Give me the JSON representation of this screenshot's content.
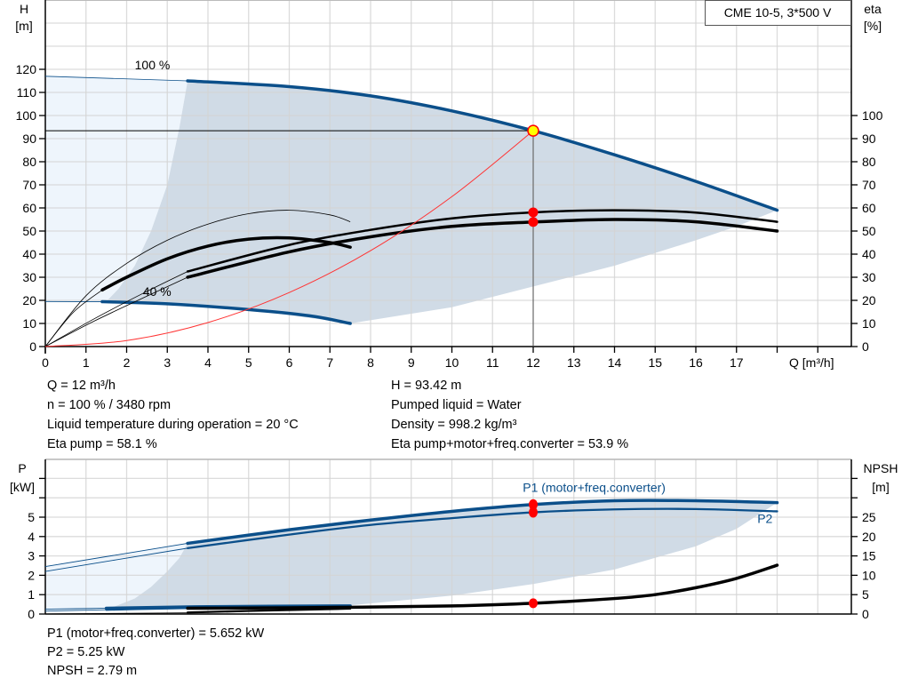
{
  "legend_box": "CME 10-5, 3*500 V",
  "colors": {
    "curve_blue": "#0b4f8a",
    "region_dark": "#d0dbe6",
    "region_light": "#eef5fc",
    "grid": "#d4d4d4",
    "system_curve": "#ff3333",
    "duty_point_fill": "#ffff00",
    "duty_point_stroke": "#ff0000",
    "marker": "#ff0000"
  },
  "info_top": {
    "left": [
      "Q = 12 m³/h",
      "n = 100 % / 3480 rpm",
      "Liquid temperature during operation = 20 °C",
      "Eta pump = 58.1 %"
    ],
    "right": [
      "H = 93.42 m",
      "Pumped liquid = Water",
      "Density = 998.2 kg/m³",
      "Eta pump+motor+freq.converter = 53.9 %"
    ]
  },
  "info_bottom": [
    "P1 (motor+freq.converter) = 5.652 kW",
    "P2 = 5.25 kW",
    "NPSH = 2.79 m"
  ],
  "chart_data": [
    {
      "type": "line",
      "xlabel": "Q [m³/h]",
      "ylabel_left": [
        "H",
        "[m]"
      ],
      "ylabel_right": [
        "eta",
        "[%]"
      ],
      "xlim": [
        0,
        19.8
      ],
      "ylim": [
        0,
        150
      ],
      "x_ticks": [
        0,
        1,
        2,
        3,
        4,
        5,
        6,
        7,
        8,
        9,
        10,
        11,
        12,
        13,
        14,
        15,
        16,
        17
      ],
      "x_ticks_unlabeled": [
        18,
        19
      ],
      "y_ticks_left": [
        0,
        10,
        20,
        30,
        40,
        50,
        60,
        70,
        80,
        90,
        100,
        110,
        120
      ],
      "y_ticks_right": [
        0,
        10,
        20,
        30,
        40,
        50,
        60,
        70,
        80,
        90,
        100
      ],
      "grid": true,
      "annotations": [
        {
          "text": "100 %",
          "q": 2.2,
          "h": 120
        },
        {
          "text": "40 %",
          "q": 2.4,
          "h": 22
        }
      ],
      "duty_point": {
        "q": 12,
        "h": 93.42,
        "eta_pump": 58.1,
        "eta_total": 53.9
      },
      "regions": {
        "light": [
          [
            0,
            19.5
          ],
          [
            0,
            117
          ],
          [
            3.5,
            115
          ],
          [
            3.3,
            95
          ],
          [
            3.0,
            70
          ],
          [
            2.6,
            50
          ],
          [
            2.2,
            35
          ],
          [
            1.8,
            25
          ],
          [
            1.5,
            19.5
          ]
        ],
        "dark": [
          [
            1.5,
            19.5
          ],
          [
            1.8,
            25
          ],
          [
            2.2,
            35
          ],
          [
            2.6,
            50
          ],
          [
            3.0,
            70
          ],
          [
            3.3,
            95
          ],
          [
            3.5,
            115
          ],
          [
            6,
            112.5
          ],
          [
            8,
            108.5
          ],
          [
            10,
            102
          ],
          [
            12,
            93.4
          ],
          [
            14,
            83
          ],
          [
            16,
            71.5
          ],
          [
            18,
            59
          ],
          [
            17,
            52
          ],
          [
            16,
            46
          ],
          [
            14,
            35
          ],
          [
            12,
            26
          ],
          [
            10,
            17
          ],
          [
            7.5,
            10
          ],
          [
            5,
            16
          ],
          [
            3,
            18.5
          ],
          [
            1.5,
            19.5
          ]
        ]
      },
      "series": [
        {
          "kind": "head",
          "thin": [
            [
              0,
              117
            ],
            [
              3.5,
              115
            ]
          ],
          "points": [
            [
              3.5,
              115
            ],
            [
              6,
              112.5
            ],
            [
              8,
              108.5
            ],
            [
              10,
              102
            ],
            [
              12,
              93.42
            ],
            [
              14,
              83
            ],
            [
              16,
              71.5
            ],
            [
              18,
              59
            ]
          ]
        },
        {
          "kind": "head",
          "thin": [
            [
              0,
              19.5
            ],
            [
              1.4,
              19.4
            ]
          ],
          "points": [
            [
              1.4,
              19.4
            ],
            [
              3,
              18.5
            ],
            [
              5,
              16
            ],
            [
              6.5,
              13.3
            ],
            [
              7.5,
              10
            ]
          ]
        },
        {
          "kind": "eta",
          "thin": [
            [
              0,
              0
            ],
            [
              1.2,
              12
            ],
            [
              2.4,
              23
            ],
            [
              3.5,
              32.5
            ]
          ],
          "points": [
            [
              3.5,
              32.5
            ],
            [
              6,
              44
            ],
            [
              8,
              50.5
            ],
            [
              10,
              55.5
            ],
            [
              12,
              58.1
            ],
            [
              14,
              59
            ],
            [
              16,
              58
            ],
            [
              18,
              54
            ]
          ]
        },
        {
          "kind": "eta",
          "heavy": true,
          "thin": [
            [
              0,
              0
            ],
            [
              1.2,
              11
            ],
            [
              2.4,
              21
            ],
            [
              3.5,
              30
            ]
          ],
          "points": [
            [
              3.5,
              30
            ],
            [
              6,
              41
            ],
            [
              8,
              47.5
            ],
            [
              10,
              52
            ],
            [
              12,
              53.9
            ],
            [
              14,
              55
            ],
            [
              16,
              54
            ],
            [
              18,
              50
            ]
          ]
        },
        {
          "kind": "eta",
          "thin": [
            [
              0,
              0
            ],
            [
              1,
              22
            ],
            [
              2,
              36
            ],
            [
              3,
              46
            ],
            [
              4,
              53
            ],
            [
              5,
              57.5
            ],
            [
              6,
              59
            ],
            [
              7,
              57
            ],
            [
              7.5,
              54
            ]
          ],
          "points": []
        },
        {
          "kind": "eta",
          "heavy": true,
          "thin": [
            [
              0,
              0
            ],
            [
              0.7,
              15
            ],
            [
              1.4,
              24.5
            ]
          ],
          "points": [
            [
              1.4,
              24.5
            ],
            [
              2,
              30
            ],
            [
              3,
              38
            ],
            [
              4,
              43.5
            ],
            [
              5,
              46.5
            ],
            [
              6,
              47
            ],
            [
              7,
              45
            ],
            [
              7.5,
              43
            ]
          ]
        },
        {
          "kind": "system",
          "points": [
            [
              0,
              0
            ],
            [
              2,
              2.6
            ],
            [
              4,
              10.4
            ],
            [
              6,
              23.4
            ],
            [
              8,
              41.5
            ],
            [
              10,
              64.9
            ],
            [
              12,
              93.42
            ]
          ]
        }
      ]
    },
    {
      "type": "line",
      "ylabel_left": [
        "P",
        "[kW]"
      ],
      "ylabel_right": [
        "NPSH",
        "[m]"
      ],
      "xlim": [
        0,
        19.8
      ],
      "ylim_left": [
        0,
        8
      ],
      "ylim_right": [
        0,
        40
      ],
      "y_ticks_left": [
        0,
        1,
        2,
        3,
        4,
        5
      ],
      "y_ticks_right": [
        0,
        5,
        10,
        15,
        20,
        25
      ],
      "grid": true,
      "labels": [
        {
          "text": "P1 (motor+freq.converter)",
          "q": 13.5,
          "p": 6.3
        },
        {
          "text": "P2",
          "q": 17.7,
          "p": 4.7
        }
      ],
      "duty_point": {
        "q": 12,
        "p1": 5.652,
        "p2": 5.25,
        "npsh": 2.79
      },
      "regions": {
        "light": [
          [
            0,
            0.25
          ],
          [
            0,
            2.45
          ],
          [
            3.5,
            3.65
          ],
          [
            3.3,
            2.9
          ],
          [
            3.0,
            2.2
          ],
          [
            2.6,
            1.4
          ],
          [
            2.2,
            0.8
          ],
          [
            1.6,
            0.3
          ]
        ],
        "dark": [
          [
            1.6,
            0.3
          ],
          [
            2.2,
            0.8
          ],
          [
            2.6,
            1.4
          ],
          [
            3.0,
            2.2
          ],
          [
            3.3,
            2.9
          ],
          [
            3.5,
            3.65
          ],
          [
            6,
            4.35
          ],
          [
            8,
            4.85
          ],
          [
            10,
            5.3
          ],
          [
            12,
            5.652
          ],
          [
            14,
            5.85
          ],
          [
            16,
            5.85
          ],
          [
            18,
            5.75
          ],
          [
            17,
            4.4
          ],
          [
            16,
            3.5
          ],
          [
            15,
            2.9
          ],
          [
            14,
            2.3
          ],
          [
            12,
            1.55
          ],
          [
            10,
            0.95
          ],
          [
            7.5,
            0.45
          ],
          [
            5,
            0.38
          ],
          [
            1.6,
            0.3
          ]
        ]
      },
      "series": [
        {
          "name": "P1 (motor+freq.converter)",
          "kind": "power",
          "heavy": true,
          "thin": [
            [
              0,
              2.45
            ],
            [
              3.5,
              3.65
            ]
          ],
          "points": [
            [
              3.5,
              3.65
            ],
            [
              6,
              4.35
            ],
            [
              8,
              4.85
            ],
            [
              10,
              5.3
            ],
            [
              12,
              5.652
            ],
            [
              14,
              5.85
            ],
            [
              16,
              5.85
            ],
            [
              18,
              5.75
            ]
          ]
        },
        {
          "name": "P2",
          "kind": "power",
          "thin": [
            [
              0,
              2.2
            ],
            [
              3.5,
              3.4
            ]
          ],
          "points": [
            [
              3.5,
              3.4
            ],
            [
              6,
              4.1
            ],
            [
              8,
              4.6
            ],
            [
              10,
              4.95
            ],
            [
              12,
              5.25
            ],
            [
              14,
              5.4
            ],
            [
              16,
              5.42
            ],
            [
              18,
              5.3
            ]
          ]
        },
        {
          "kind": "power",
          "heavy": true,
          "thin": [
            [
              0,
              0.25
            ],
            [
              1.5,
              0.3
            ]
          ],
          "points": [
            [
              1.5,
              0.3
            ],
            [
              4,
              0.38
            ],
            [
              7.5,
              0.42
            ]
          ]
        },
        {
          "kind": "power",
          "thin": [
            [
              0,
              0.15
            ],
            [
              1.5,
              0.22
            ]
          ],
          "points": [
            [
              1.5,
              0.22
            ],
            [
              4,
              0.32
            ],
            [
              7.5,
              0.36
            ]
          ]
        },
        {
          "kind": "npsh",
          "thin": [
            [
              0,
              0
            ],
            [
              3.5,
              0.3
            ]
          ],
          "points": [
            [
              3.5,
              0.4
            ],
            [
              5,
              0.8
            ],
            [
              7.5,
              1.4
            ]
          ]
        },
        {
          "kind": "npsh",
          "heavy": true,
          "points": [
            [
              3.5,
              1.5
            ],
            [
              6,
              1.6
            ],
            [
              8,
              1.8
            ],
            [
              10,
              2.1
            ],
            [
              12,
              2.79
            ],
            [
              14,
              4
            ],
            [
              15,
              5
            ],
            [
              16,
              6.8
            ],
            [
              17,
              9.2
            ],
            [
              18,
              12.6
            ]
          ]
        }
      ]
    }
  ]
}
